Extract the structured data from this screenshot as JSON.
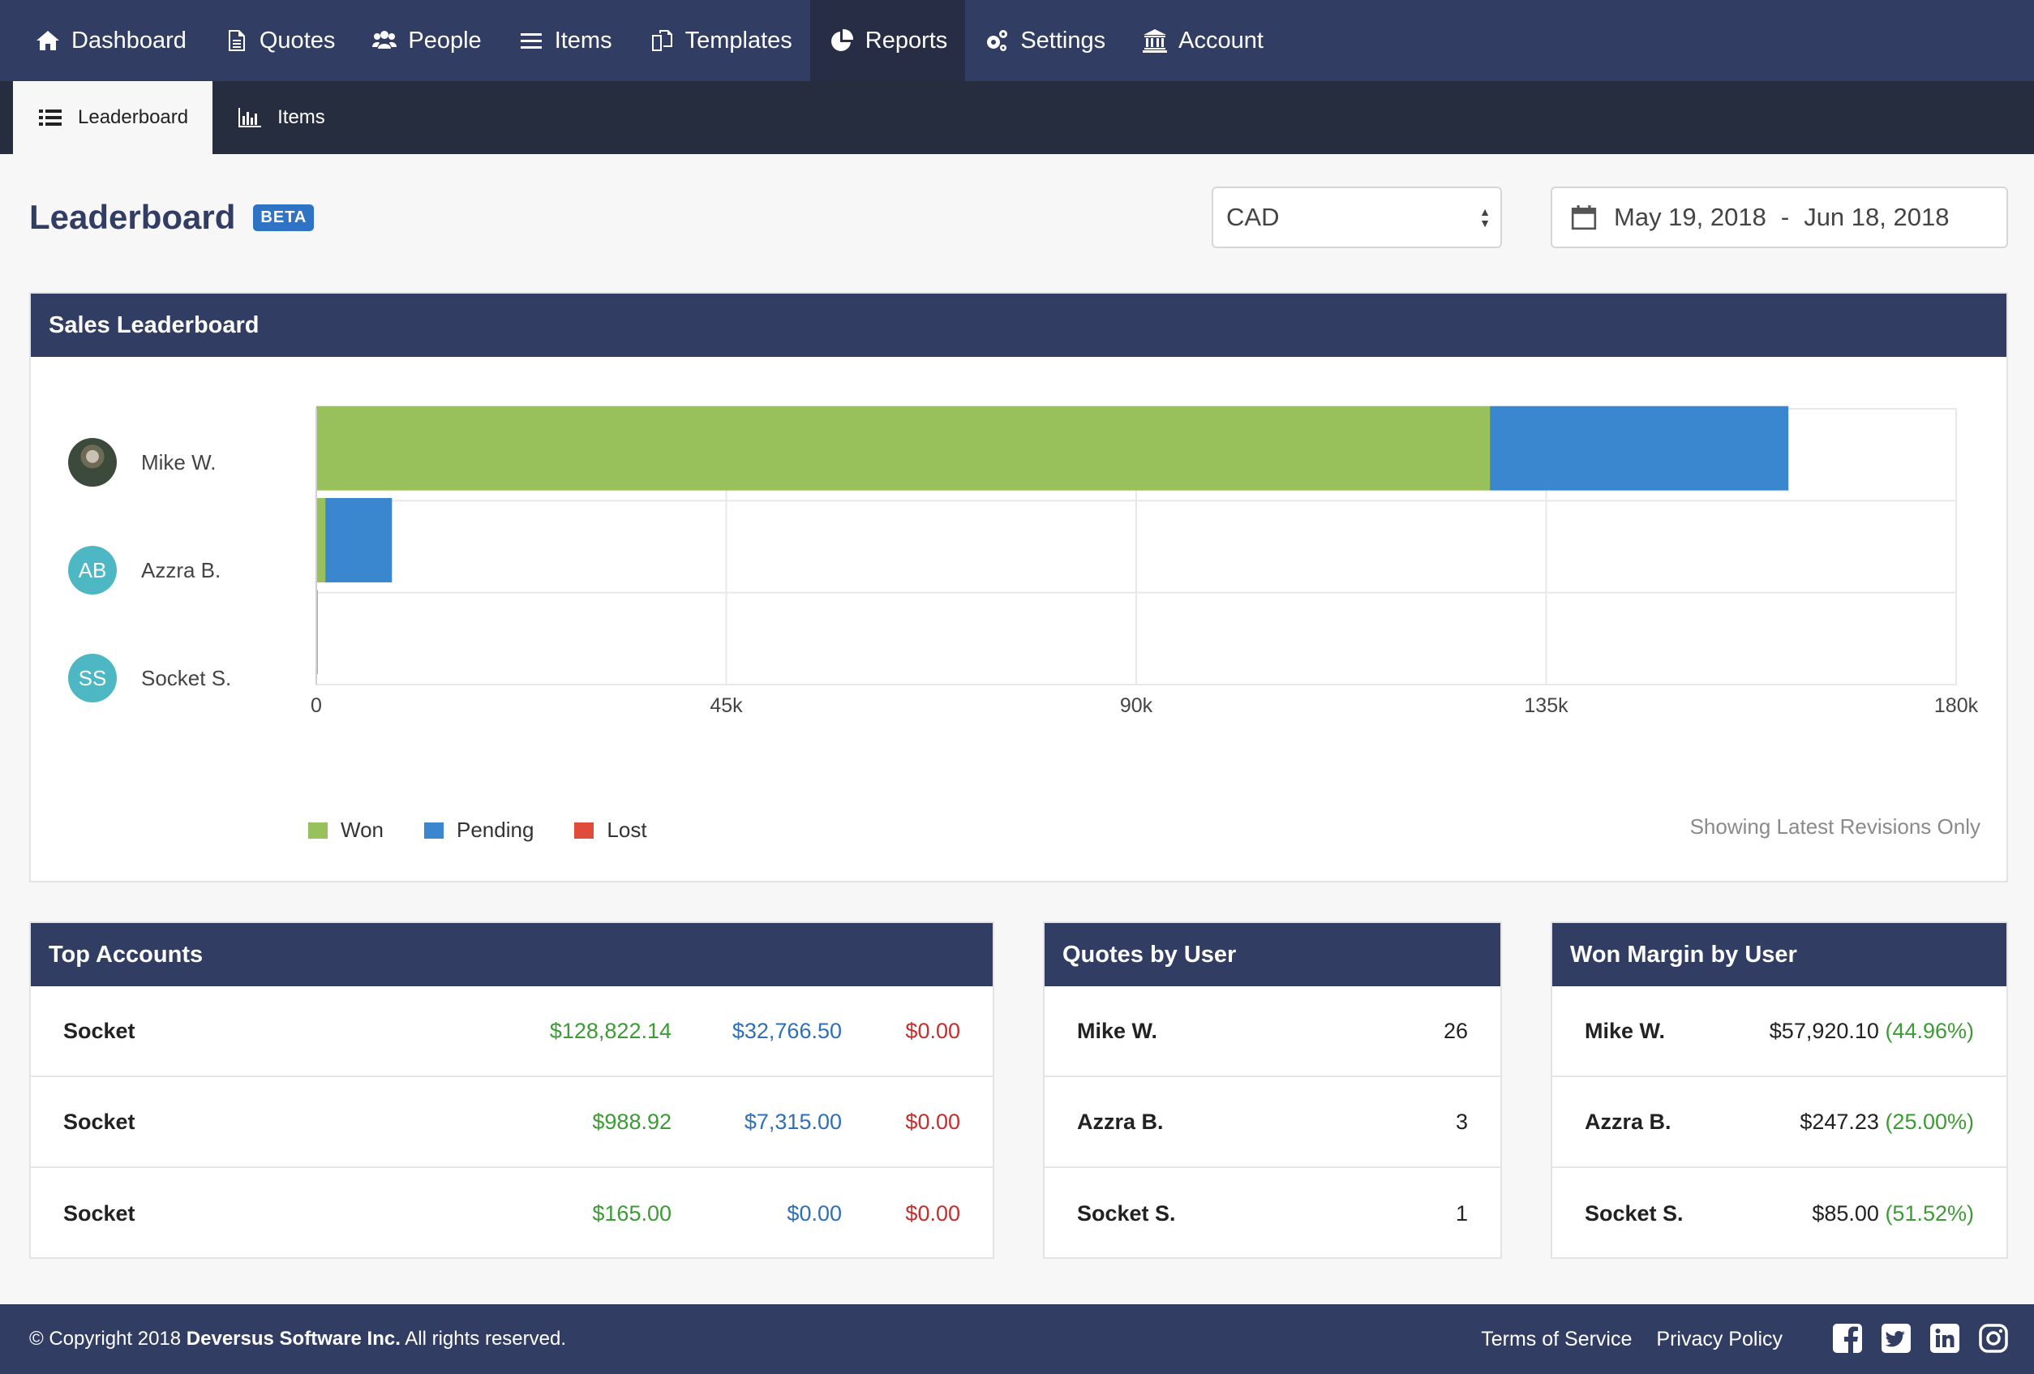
{
  "nav": {
    "items": [
      {
        "label": "Dashboard",
        "icon": "home-icon"
      },
      {
        "label": "Quotes",
        "icon": "document-icon"
      },
      {
        "label": "People",
        "icon": "people-icon"
      },
      {
        "label": "Items",
        "icon": "list-icon"
      },
      {
        "label": "Templates",
        "icon": "copy-icon"
      },
      {
        "label": "Reports",
        "icon": "pie-chart-icon",
        "active": true
      },
      {
        "label": "Settings",
        "icon": "gears-icon"
      },
      {
        "label": "Account",
        "icon": "bank-icon"
      }
    ]
  },
  "subnav": {
    "items": [
      {
        "label": "Leaderboard",
        "icon": "list-bullets-icon",
        "active": true
      },
      {
        "label": "Items",
        "icon": "bar-chart-icon"
      }
    ]
  },
  "page": {
    "title": "Leaderboard",
    "badge": "BETA",
    "currency": "CAD",
    "date_start": "May 19, 2018",
    "date_sep": "-",
    "date_end": "Jun 18, 2018"
  },
  "sales": {
    "title": "Sales Leaderboard",
    "note": "Showing Latest Revisions Only",
    "users": [
      {
        "name": "Mike W.",
        "initials": "",
        "avatar": "photo"
      },
      {
        "name": "Azzra B.",
        "initials": "AB",
        "avatar": "teal"
      },
      {
        "name": "Socket S.",
        "initials": "SS",
        "avatar": "teal"
      }
    ]
  },
  "chart_data": {
    "type": "bar",
    "orientation": "horizontal",
    "stacked": true,
    "categories": [
      "Mike W.",
      "Azzra B.",
      "Socket S."
    ],
    "series": [
      {
        "name": "Won",
        "color": "#99c15b",
        "values": [
          128822.14,
          988.92,
          165.0
        ]
      },
      {
        "name": "Pending",
        "color": "#3a87cf",
        "values": [
          32766.5,
          7315.0,
          0
        ]
      },
      {
        "name": "Lost",
        "color": "#e04b3c",
        "values": [
          0,
          0,
          0
        ]
      }
    ],
    "xlim": [
      0,
      180000
    ],
    "xticks": [
      "0",
      "45k",
      "90k",
      "135k",
      "180k"
    ],
    "grid": true,
    "legend": "bottom-left"
  },
  "top_accounts": {
    "title": "Top Accounts",
    "rows": [
      {
        "name": "Socket",
        "won": "$128,822.14",
        "pending": "$32,766.50",
        "lost": "$0.00"
      },
      {
        "name": "Socket",
        "won": "$988.92",
        "pending": "$7,315.00",
        "lost": "$0.00"
      },
      {
        "name": "Socket",
        "won": "$165.00",
        "pending": "$0.00",
        "lost": "$0.00"
      }
    ]
  },
  "quotes_by_user": {
    "title": "Quotes by User",
    "rows": [
      {
        "name": "Mike W.",
        "count": "26"
      },
      {
        "name": "Azzra B.",
        "count": "3"
      },
      {
        "name": "Socket S.",
        "count": "1"
      }
    ]
  },
  "won_margin": {
    "title": "Won Margin by User",
    "rows": [
      {
        "name": "Mike W.",
        "amount": "$57,920.10",
        "pct": "(44.96%)"
      },
      {
        "name": "Azzra B.",
        "amount": "$247.23",
        "pct": "(25.00%)"
      },
      {
        "name": "Socket S.",
        "amount": "$85.00",
        "pct": "(51.52%)"
      }
    ]
  },
  "footer": {
    "copyright_prefix": "© Copyright 2018 ",
    "company": "Deversus Software Inc.",
    "copyright_suffix": " All rights reserved.",
    "terms": "Terms of Service",
    "privacy": "Privacy Policy"
  }
}
